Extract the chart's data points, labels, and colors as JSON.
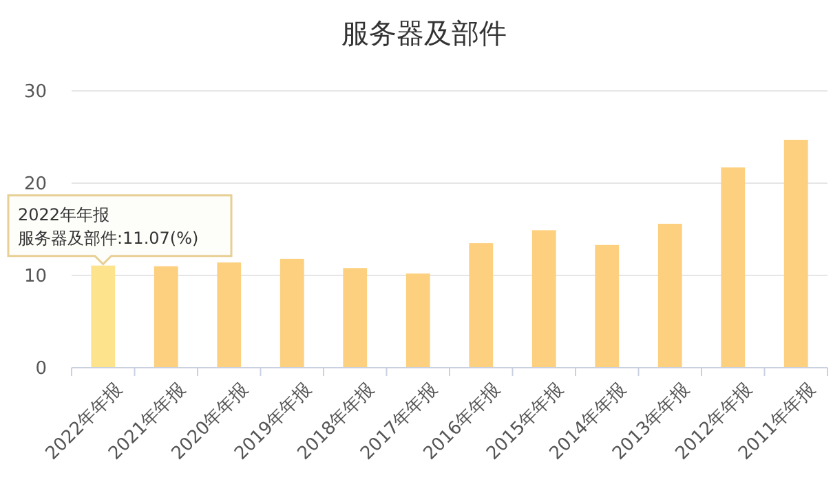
{
  "chart_data": {
    "type": "bar",
    "title": "服务器及部件",
    "categories": [
      "2022年年报",
      "2021年年报",
      "2020年年报",
      "2019年年报",
      "2018年年报",
      "2017年年报",
      "2016年年报",
      "2015年年报",
      "2014年年报",
      "2013年年报",
      "2012年年报",
      "2011年年报"
    ],
    "values": [
      11.07,
      11.0,
      11.4,
      11.8,
      10.8,
      10.2,
      13.5,
      14.9,
      13.3,
      15.6,
      21.7,
      24.7
    ],
    "colors": [
      "#fde38c",
      "#fcd07e",
      "#fcd07e",
      "#fcd07e",
      "#fcd07e",
      "#fcd07e",
      "#fcd07e",
      "#fcd07e",
      "#fcd07e",
      "#fcd07e",
      "#fcd07e",
      "#fcd07e"
    ],
    "ylim": [
      0,
      30
    ],
    "yticks": [
      0,
      10,
      20,
      30
    ],
    "grid": "y",
    "annotations": [
      "2022年年报",
      "服务器及部件:11.07(%)"
    ]
  }
}
